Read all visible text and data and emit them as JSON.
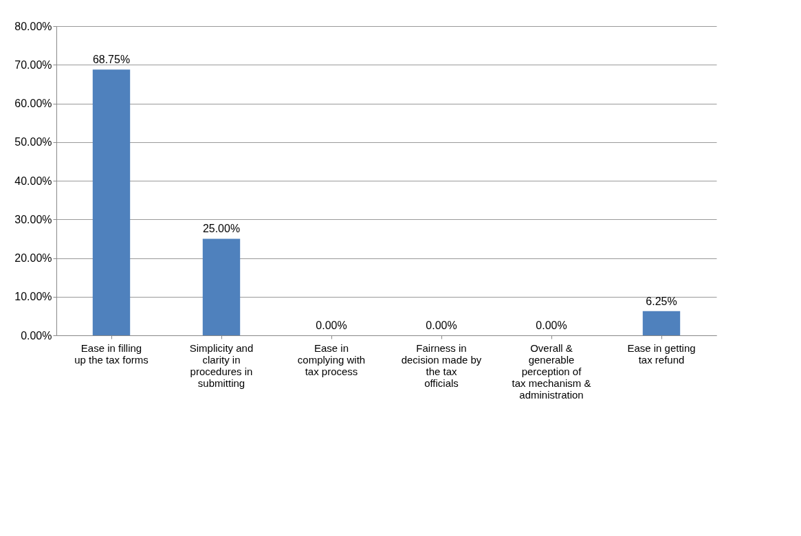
{
  "chart_data": {
    "type": "bar",
    "categories": [
      "Ease in filling up the tax forms",
      "Simplicity and clarity in procedures in submitting",
      "Ease in complying with tax process",
      "Fairness in decision made by the tax officials",
      "Overall & generable perception of tax mechanism & administration",
      "Ease in getting tax refund"
    ],
    "values": [
      68.75,
      25,
      0,
      0,
      0,
      6.25
    ],
    "color": "#4f81bd",
    "value_labels": [
      "68.75%",
      "25.00%",
      "0.00%",
      "0.00%",
      "0.00%",
      "6.25%"
    ],
    "ylim": [
      0,
      80
    ],
    "yticks": [
      {
        "value": 0,
        "label": "0.00%"
      },
      {
        "value": 10,
        "label": "10.00%"
      },
      {
        "value": 20,
        "label": "20.00%"
      },
      {
        "value": 30,
        "label": "30.00%"
      },
      {
        "value": 40,
        "label": "40.00%"
      },
      {
        "value": 50,
        "label": "50.00%"
      },
      {
        "value": 60,
        "label": "60.00%"
      },
      {
        "value": 70,
        "label": "70.00%"
      },
      {
        "value": 80,
        "label": "80.00%"
      }
    ],
    "grid": "y"
  }
}
